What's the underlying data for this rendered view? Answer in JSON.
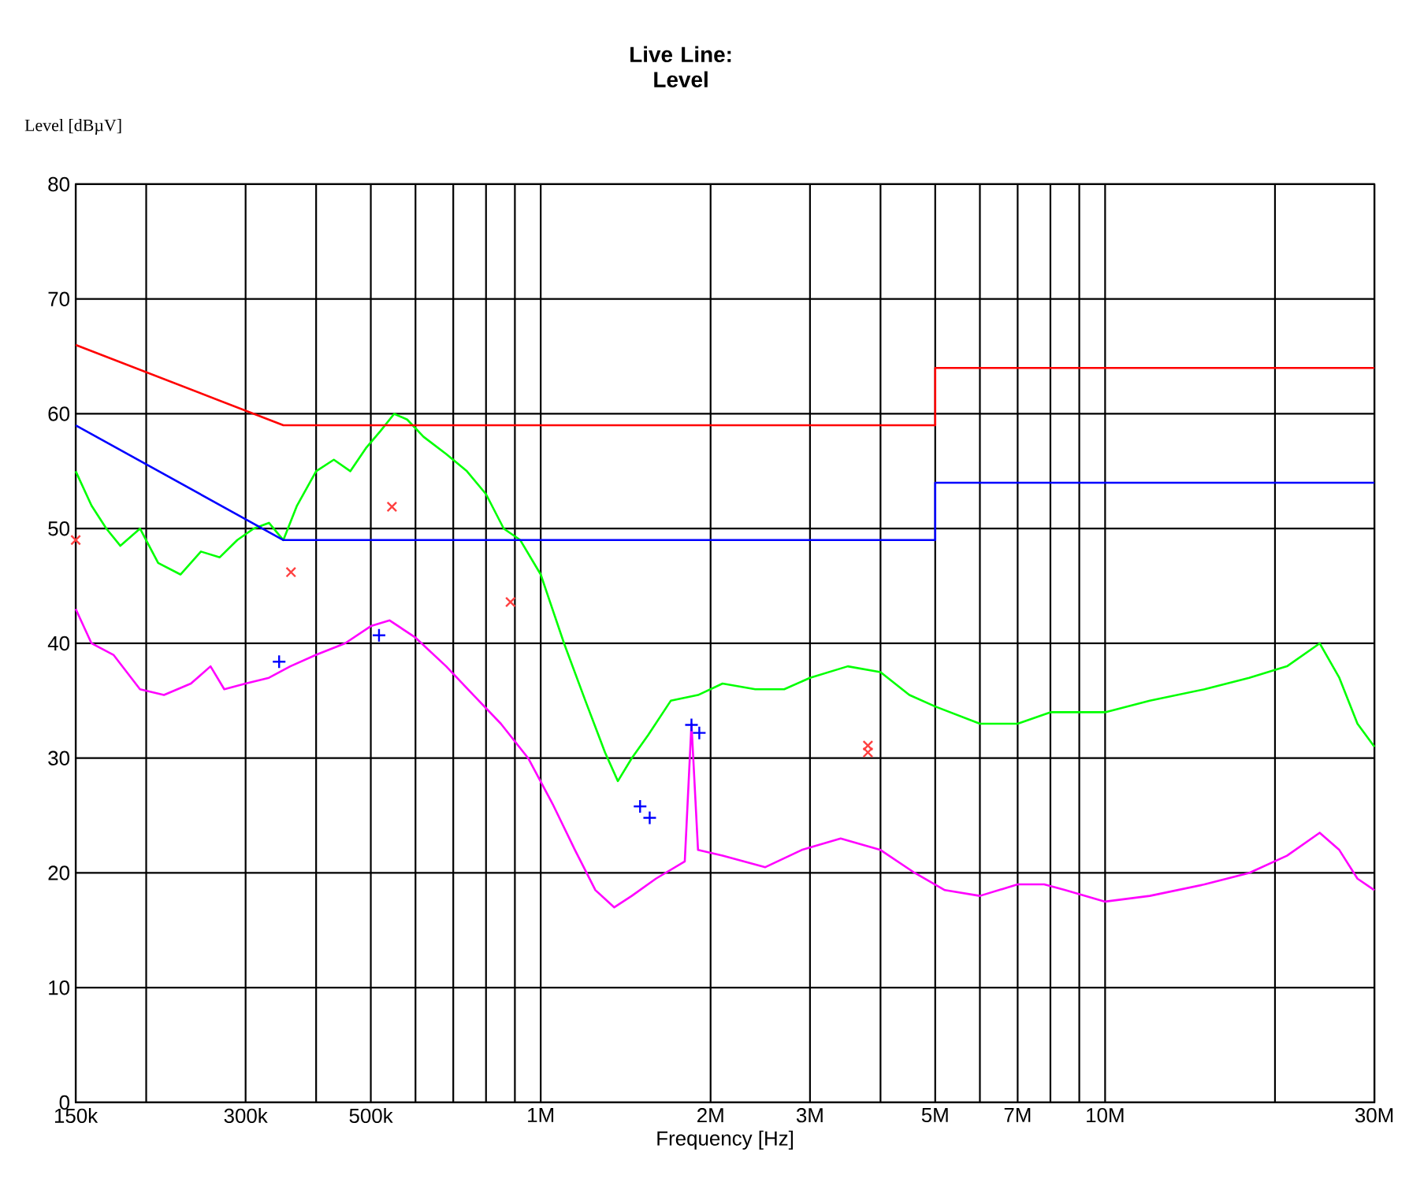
{
  "chart_data": {
    "type": "line",
    "title": "Live Line: Level",
    "xlabel": "Frequency [Hz]",
    "ylabel": "Level [dBµV]",
    "log": "x",
    "grid": true,
    "xlim": [
      150000,
      30000000
    ],
    "ylim": [
      0,
      80
    ],
    "xticks": [
      {
        "value": 150000,
        "label": "150k"
      },
      {
        "value": 200000,
        "label": null
      },
      {
        "value": 300000,
        "label": "300k"
      },
      {
        "value": 400000,
        "label": null
      },
      {
        "value": 500000,
        "label": "500k"
      },
      {
        "value": 600000,
        "label": null
      },
      {
        "value": 700000,
        "label": null
      },
      {
        "value": 800000,
        "label": null
      },
      {
        "value": 900000,
        "label": null
      },
      {
        "value": 1000000,
        "label": "1M"
      },
      {
        "value": 2000000,
        "label": "2M"
      },
      {
        "value": 3000000,
        "label": "3M"
      },
      {
        "value": 4000000,
        "label": null
      },
      {
        "value": 5000000,
        "label": "5M"
      },
      {
        "value": 6000000,
        "label": null
      },
      {
        "value": 7000000,
        "label": "7M"
      },
      {
        "value": 8000000,
        "label": null
      },
      {
        "value": 9000000,
        "label": null
      },
      {
        "value": 10000000,
        "label": "10M"
      },
      {
        "value": 20000000,
        "label": null
      },
      {
        "value": 30000000,
        "label": "30M"
      }
    ],
    "yticks": [
      0,
      10,
      20,
      30,
      40,
      50,
      60,
      70,
      80
    ],
    "series": [
      {
        "color": "#00ff00",
        "x": [
          150000,
          160000,
          170000,
          180000,
          195000,
          210000,
          230000,
          250000,
          270000,
          290000,
          310000,
          330000,
          350000,
          370000,
          400000,
          430000,
          460000,
          490000,
          520000,
          550000,
          580000,
          620000,
          680000,
          740000,
          800000,
          860000,
          920000,
          1000000,
          1100000,
          1200000,
          1300000,
          1370000,
          1450000,
          1550000,
          1700000,
          1900000,
          2100000,
          2400000,
          2700000,
          3000000,
          3500000,
          4000000,
          4500000,
          5000000,
          6000000,
          7000000,
          8000000,
          10000000,
          12000000,
          15000000,
          18000000,
          21000000,
          24000000,
          26000000,
          28000000,
          30000000
        ],
        "values": [
          55,
          52,
          50,
          48.5,
          50,
          47,
          46,
          48,
          47.5,
          49,
          50,
          50.5,
          49,
          52,
          55,
          56,
          55,
          57,
          58.5,
          60,
          59.5,
          58,
          56.5,
          55,
          53,
          50,
          49,
          46,
          40,
          35,
          30.5,
          28,
          30,
          32,
          35,
          35.5,
          36.5,
          36,
          36,
          37,
          38,
          37.5,
          35.5,
          34.5,
          33,
          33,
          34,
          34,
          35,
          36,
          37,
          38,
          40,
          37,
          33,
          31
        ]
      },
      {
        "color": "#ff00ff",
        "x": [
          150000,
          160000,
          175000,
          195000,
          215000,
          240000,
          260000,
          275000,
          300000,
          330000,
          360000,
          400000,
          450000,
          500000,
          540000,
          600000,
          680000,
          760000,
          850000,
          950000,
          1050000,
          1150000,
          1250000,
          1350000,
          1450000,
          1600000,
          1800000,
          1850000,
          1900000,
          2100000,
          2500000,
          2900000,
          3400000,
          4000000,
          4600000,
          5200000,
          6000000,
          7000000,
          7800000,
          8500000,
          10000000,
          12000000,
          15000000,
          18000000,
          21000000,
          24000000,
          26000000,
          28000000,
          30000000
        ],
        "values": [
          43,
          40,
          39,
          36,
          35.5,
          36.5,
          38,
          36,
          36.5,
          37,
          38,
          39,
          40,
          41.5,
          42,
          40.5,
          38,
          35.5,
          33,
          30,
          26,
          22,
          18.5,
          17,
          18,
          19.5,
          21,
          33,
          22,
          21.5,
          20.5,
          22,
          23,
          22,
          20,
          18.5,
          18,
          19,
          19,
          18.5,
          17.5,
          18,
          19,
          20,
          21.5,
          23.5,
          22,
          19.5,
          18.5
        ]
      },
      {
        "color": "#ff0000",
        "x": [
          150000,
          350000,
          5000000,
          5000000,
          30000000
        ],
        "values": [
          66,
          59,
          59,
          64,
          64
        ]
      },
      {
        "color": "#0000ff",
        "x": [
          150000,
          350000,
          5000000,
          5000000,
          30000000
        ],
        "values": [
          59,
          49,
          49,
          54,
          54
        ]
      },
      {
        "type": "scatter",
        "marker": "cross",
        "color": "#ff4040",
        "x": [
          150000,
          361000,
          545000,
          884000,
          3800000,
          3800000
        ],
        "values": [
          49,
          46.2,
          51.9,
          43.6,
          30.5,
          31.1
        ]
      },
      {
        "type": "scatter",
        "marker": "plus",
        "color": "#0000ff",
        "x": [
          344000,
          517000,
          1500000,
          1560000,
          1850000,
          1910000
        ],
        "values": [
          38.4,
          40.7,
          25.8,
          24.8,
          32.9,
          32.2
        ]
      }
    ]
  }
}
